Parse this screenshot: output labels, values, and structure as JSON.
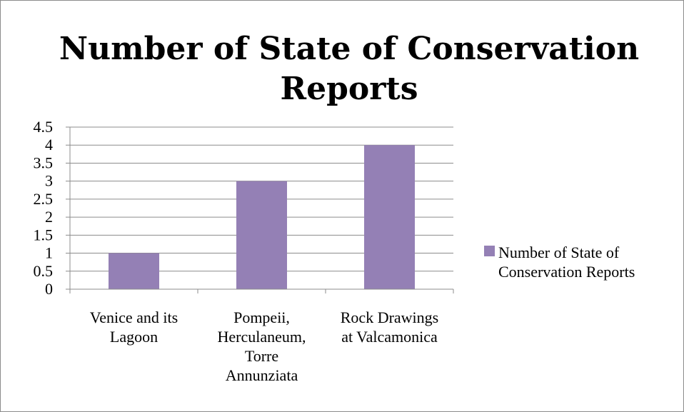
{
  "chart_data": {
    "type": "bar",
    "title": "Number of State of Conservation Reports",
    "categories": [
      "Venice and its Lagoon",
      "Pompeii, Herculaneum, Torre Annunziata",
      "Rock Drawings at Valcamonica"
    ],
    "category_lines": [
      [
        "Venice and its",
        "Lagoon"
      ],
      [
        "Pompeii,",
        "Herculaneum,",
        "Torre",
        "Annunziata"
      ],
      [
        "Rock Drawings",
        "at Valcamonica"
      ]
    ],
    "series": [
      {
        "name": "Number of State of Conservation Reports",
        "values": [
          1,
          3,
          4
        ]
      }
    ],
    "ylim": [
      0,
      4.5
    ],
    "yticks": [
      "0",
      "0.5",
      "1",
      "1.5",
      "2",
      "2.5",
      "3",
      "3.5",
      "4",
      "4.5"
    ],
    "grid": true,
    "legend_position": "right",
    "bar_color": "#9480b5",
    "legend_lines": [
      "Number of State of",
      "Conservation Reports"
    ]
  }
}
